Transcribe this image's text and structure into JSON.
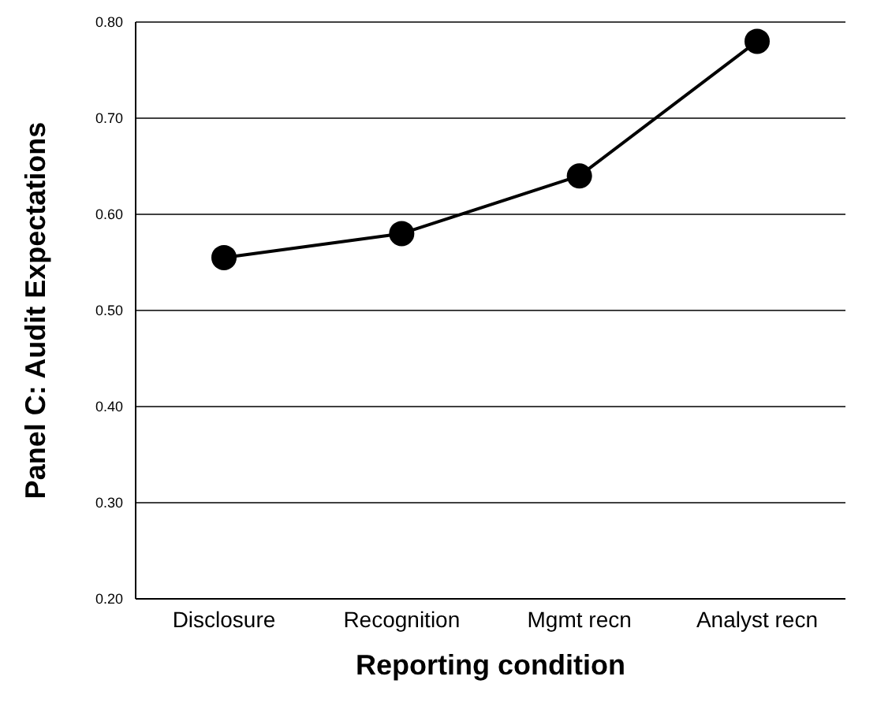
{
  "chart_data": {
    "type": "line",
    "xlabel": "Reporting condition",
    "ylabel": "Panel C:  Audit Expectations",
    "categories": [
      "Disclosure",
      "Recognition",
      "Mgmt recn",
      "Analyst recn"
    ],
    "series": [
      {
        "color": "#000000",
        "values": [
          0.555,
          0.58,
          0.64,
          0.78
        ]
      }
    ],
    "ylim": [
      0.2,
      0.8
    ],
    "yticks": [
      {
        "value": 0.2,
        "label": "0.20"
      },
      {
        "value": 0.3,
        "label": "0.30"
      },
      {
        "value": 0.4,
        "label": "0.40"
      },
      {
        "value": 0.5,
        "label": "0.50"
      },
      {
        "value": 0.6,
        "label": "0.60"
      },
      {
        "value": 0.7,
        "label": "0.70"
      },
      {
        "value": 0.8,
        "label": "0.80"
      }
    ],
    "grid": "y",
    "marker": "circle",
    "line_style": "solid",
    "legend": false
  }
}
